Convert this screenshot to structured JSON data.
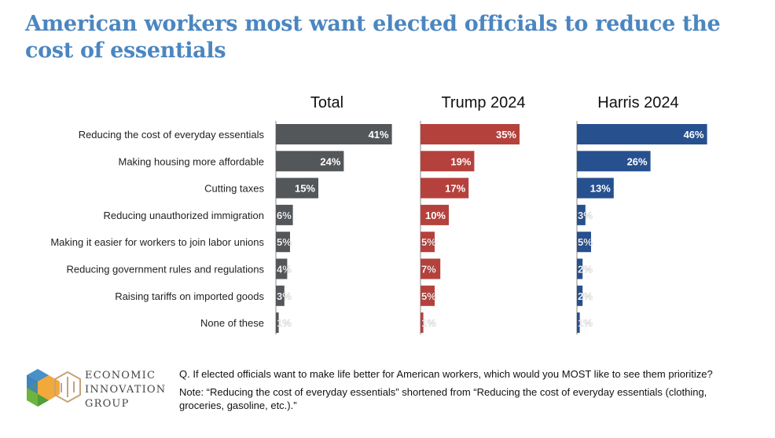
{
  "title": "American workers most want elected officials to reduce the cost of essentials",
  "colors": {
    "title": "#4b86c0",
    "total": "#54575a",
    "trump": "#b5413d",
    "harris": "#27508f"
  },
  "chart_data": {
    "type": "bar",
    "orientation": "horizontal",
    "categories": [
      "Reducing the cost of everyday essentials",
      "Making housing more affordable",
      "Cutting taxes",
      "Reducing unauthorized immigration",
      "Making it easier for workers to join labor unions",
      "Reducing government rules and regulations",
      "Raising tariffs on imported goods",
      "None of these"
    ],
    "series": [
      {
        "name": "Total",
        "color": "#54575a",
        "values": [
          41,
          24,
          15,
          6,
          5,
          4,
          3,
          1
        ],
        "labels": [
          "41%",
          "24%",
          "15%",
          "6%",
          "5%",
          "4%",
          "3%",
          "1%"
        ]
      },
      {
        "name": "Trump 2024",
        "color": "#b5413d",
        "values": [
          35,
          19,
          17,
          10,
          5,
          7,
          5,
          1
        ],
        "labels": [
          "35%",
          "19%",
          "17%",
          "10%",
          "5%",
          "7%",
          "5%",
          "1%"
        ]
      },
      {
        "name": "Harris 2024",
        "color": "#27508f",
        "values": [
          46,
          26,
          13,
          3,
          5,
          2,
          2,
          1
        ],
        "labels": [
          "46%",
          "26%",
          "13%",
          "3%",
          "5%",
          "2%",
          "2%",
          "1%"
        ]
      }
    ],
    "value_unit": "%",
    "grid": false
  },
  "question": "Q. If elected officials want to make life better for American workers, which would you MOST like to see them prioritize?",
  "note": "Note: “Reducing the cost of everyday essentials” shortened from “Reducing the cost of everyday essentials (clothing, groceries, gasoline, etc.).”",
  "logo": {
    "line1": "ECONOMIC",
    "line2": "INNOVATION",
    "line3": "GROUP"
  }
}
